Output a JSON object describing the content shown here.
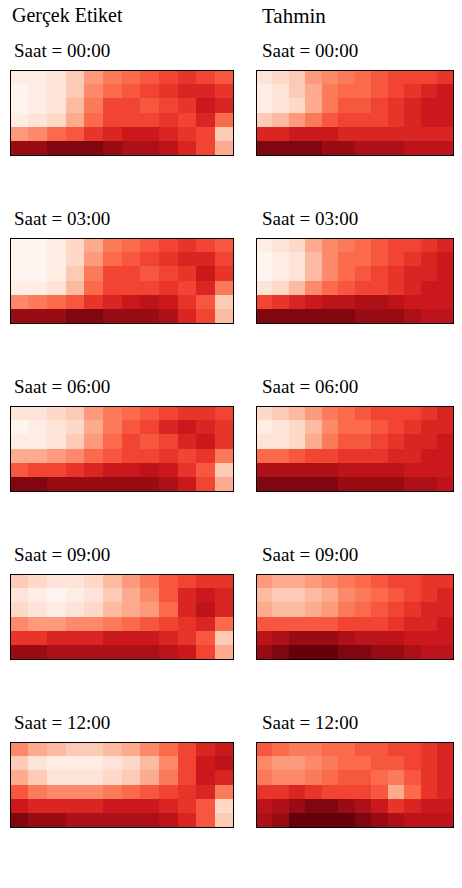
{
  "column_titles": [
    "Gerçek Etiket",
    "Tahmin"
  ],
  "chart_data": [
    {
      "type": "heatmap",
      "title": "Saat = 00:00",
      "tick_labels": false,
      "grid": false,
      "zlim": [
        0,
        1
      ],
      "cells": [
        [
          0.05,
          0.05,
          0.1,
          0.2,
          0.35,
          0.45,
          0.5,
          0.55,
          0.6,
          0.65,
          0.6,
          0.55
        ],
        [
          0.0,
          0.05,
          0.1,
          0.2,
          0.4,
          0.5,
          0.55,
          0.6,
          0.65,
          0.7,
          0.7,
          0.65
        ],
        [
          0.0,
          0.05,
          0.1,
          0.25,
          0.45,
          0.6,
          0.6,
          0.55,
          0.6,
          0.65,
          0.75,
          0.7
        ],
        [
          0.05,
          0.1,
          0.15,
          0.3,
          0.5,
          0.6,
          0.6,
          0.6,
          0.65,
          0.6,
          0.7,
          0.5
        ],
        [
          0.35,
          0.4,
          0.5,
          0.55,
          0.65,
          0.7,
          0.75,
          0.75,
          0.7,
          0.65,
          0.6,
          0.2
        ],
        [
          0.9,
          0.9,
          0.95,
          0.95,
          0.95,
          0.9,
          0.85,
          0.85,
          0.8,
          0.7,
          0.6,
          0.3
        ]
      ]
    },
    {
      "type": "heatmap",
      "title": "Saat = 00:00",
      "tick_labels": false,
      "grid": false,
      "zlim": [
        0,
        1
      ],
      "cells": [
        [
          0.1,
          0.15,
          0.2,
          0.35,
          0.4,
          0.45,
          0.5,
          0.55,
          0.6,
          0.6,
          0.6,
          0.65
        ],
        [
          0.05,
          0.1,
          0.2,
          0.3,
          0.45,
          0.5,
          0.5,
          0.55,
          0.6,
          0.65,
          0.7,
          0.75
        ],
        [
          0.05,
          0.1,
          0.15,
          0.3,
          0.45,
          0.55,
          0.55,
          0.6,
          0.65,
          0.7,
          0.75,
          0.75
        ],
        [
          0.2,
          0.25,
          0.35,
          0.45,
          0.55,
          0.6,
          0.6,
          0.6,
          0.65,
          0.7,
          0.75,
          0.75
        ],
        [
          0.7,
          0.7,
          0.75,
          0.75,
          0.75,
          0.7,
          0.7,
          0.7,
          0.7,
          0.7,
          0.7,
          0.7
        ],
        [
          0.95,
          0.95,
          0.95,
          0.95,
          0.9,
          0.9,
          0.85,
          0.85,
          0.85,
          0.8,
          0.8,
          0.8
        ]
      ]
    },
    {
      "type": "heatmap",
      "title": "Saat = 03:00",
      "tick_labels": false,
      "grid": false,
      "zlim": [
        0,
        1
      ],
      "cells": [
        [
          0.0,
          0.0,
          0.05,
          0.15,
          0.3,
          0.45,
          0.5,
          0.55,
          0.6,
          0.65,
          0.6,
          0.55
        ],
        [
          0.0,
          0.0,
          0.05,
          0.15,
          0.35,
          0.5,
          0.55,
          0.6,
          0.65,
          0.7,
          0.7,
          0.6
        ],
        [
          0.0,
          0.0,
          0.05,
          0.2,
          0.45,
          0.6,
          0.6,
          0.55,
          0.6,
          0.65,
          0.75,
          0.65
        ],
        [
          0.05,
          0.05,
          0.1,
          0.25,
          0.5,
          0.6,
          0.6,
          0.6,
          0.65,
          0.6,
          0.7,
          0.45
        ],
        [
          0.4,
          0.45,
          0.5,
          0.55,
          0.65,
          0.7,
          0.75,
          0.8,
          0.75,
          0.65,
          0.55,
          0.2
        ],
        [
          0.9,
          0.9,
          0.9,
          0.95,
          0.95,
          0.9,
          0.9,
          0.9,
          0.85,
          0.7,
          0.6,
          0.25
        ]
      ]
    },
    {
      "type": "heatmap",
      "title": "Saat = 03:00",
      "tick_labels": false,
      "grid": false,
      "zlim": [
        0,
        1
      ],
      "cells": [
        [
          0.05,
          0.1,
          0.15,
          0.3,
          0.4,
          0.45,
          0.5,
          0.55,
          0.6,
          0.6,
          0.65,
          0.7
        ],
        [
          0.0,
          0.05,
          0.1,
          0.25,
          0.4,
          0.5,
          0.5,
          0.55,
          0.6,
          0.65,
          0.7,
          0.75
        ],
        [
          0.0,
          0.05,
          0.1,
          0.25,
          0.4,
          0.5,
          0.55,
          0.6,
          0.65,
          0.7,
          0.7,
          0.75
        ],
        [
          0.1,
          0.15,
          0.25,
          0.4,
          0.5,
          0.55,
          0.6,
          0.6,
          0.65,
          0.7,
          0.75,
          0.75
        ],
        [
          0.6,
          0.65,
          0.7,
          0.75,
          0.8,
          0.8,
          0.85,
          0.85,
          0.8,
          0.75,
          0.75,
          0.75
        ],
        [
          0.95,
          0.95,
          0.95,
          0.95,
          0.95,
          0.95,
          0.9,
          0.9,
          0.9,
          0.85,
          0.8,
          0.8
        ]
      ]
    },
    {
      "type": "heatmap",
      "title": "Saat = 06:00",
      "tick_labels": false,
      "grid": false,
      "zlim": [
        0,
        1
      ],
      "cells": [
        [
          0.1,
          0.1,
          0.15,
          0.2,
          0.35,
          0.45,
          0.5,
          0.55,
          0.6,
          0.65,
          0.65,
          0.6
        ],
        [
          0.0,
          0.05,
          0.1,
          0.15,
          0.3,
          0.45,
          0.55,
          0.6,
          0.7,
          0.75,
          0.7,
          0.65
        ],
        [
          0.05,
          0.05,
          0.1,
          0.2,
          0.35,
          0.5,
          0.6,
          0.55,
          0.6,
          0.7,
          0.75,
          0.65
        ],
        [
          0.3,
          0.3,
          0.35,
          0.4,
          0.5,
          0.55,
          0.6,
          0.6,
          0.65,
          0.6,
          0.65,
          0.45
        ],
        [
          0.55,
          0.6,
          0.6,
          0.65,
          0.7,
          0.75,
          0.75,
          0.8,
          0.75,
          0.65,
          0.55,
          0.2
        ],
        [
          0.95,
          0.95,
          0.9,
          0.9,
          0.9,
          0.9,
          0.9,
          0.9,
          0.85,
          0.75,
          0.6,
          0.3
        ]
      ]
    },
    {
      "type": "heatmap",
      "title": "Saat = 06:00",
      "tick_labels": false,
      "grid": false,
      "zlim": [
        0,
        1
      ],
      "cells": [
        [
          0.15,
          0.2,
          0.25,
          0.35,
          0.45,
          0.5,
          0.55,
          0.6,
          0.6,
          0.6,
          0.65,
          0.7
        ],
        [
          0.05,
          0.1,
          0.15,
          0.25,
          0.4,
          0.5,
          0.5,
          0.55,
          0.6,
          0.65,
          0.7,
          0.7
        ],
        [
          0.1,
          0.1,
          0.15,
          0.3,
          0.45,
          0.55,
          0.55,
          0.6,
          0.65,
          0.7,
          0.7,
          0.75
        ],
        [
          0.5,
          0.5,
          0.55,
          0.6,
          0.6,
          0.65,
          0.65,
          0.65,
          0.7,
          0.7,
          0.75,
          0.75
        ],
        [
          0.85,
          0.85,
          0.85,
          0.85,
          0.85,
          0.8,
          0.8,
          0.8,
          0.8,
          0.75,
          0.75,
          0.75
        ],
        [
          0.95,
          0.95,
          0.95,
          0.95,
          0.95,
          0.9,
          0.9,
          0.9,
          0.9,
          0.85,
          0.85,
          0.8
        ]
      ]
    },
    {
      "type": "heatmap",
      "title": "Saat = 09:00",
      "tick_labels": false,
      "grid": false,
      "zlim": [
        0,
        1
      ],
      "cells": [
        [
          0.2,
          0.15,
          0.1,
          0.1,
          0.15,
          0.25,
          0.35,
          0.45,
          0.55,
          0.6,
          0.65,
          0.65
        ],
        [
          0.1,
          0.05,
          0.0,
          0.05,
          0.1,
          0.2,
          0.3,
          0.4,
          0.55,
          0.7,
          0.75,
          0.7
        ],
        [
          0.15,
          0.1,
          0.05,
          0.1,
          0.15,
          0.25,
          0.3,
          0.35,
          0.5,
          0.7,
          0.8,
          0.7
        ],
        [
          0.4,
          0.35,
          0.35,
          0.4,
          0.4,
          0.45,
          0.5,
          0.55,
          0.6,
          0.65,
          0.7,
          0.5
        ],
        [
          0.65,
          0.65,
          0.7,
          0.7,
          0.7,
          0.75,
          0.75,
          0.75,
          0.7,
          0.65,
          0.55,
          0.2
        ],
        [
          0.9,
          0.9,
          0.85,
          0.85,
          0.85,
          0.85,
          0.85,
          0.85,
          0.8,
          0.75,
          0.6,
          0.3
        ]
      ]
    },
    {
      "type": "heatmap",
      "title": "Saat = 09:00",
      "tick_labels": false,
      "grid": false,
      "zlim": [
        0,
        1
      ],
      "cells": [
        [
          0.35,
          0.3,
          0.3,
          0.35,
          0.4,
          0.45,
          0.5,
          0.55,
          0.6,
          0.6,
          0.65,
          0.65
        ],
        [
          0.25,
          0.2,
          0.2,
          0.25,
          0.3,
          0.4,
          0.45,
          0.5,
          0.55,
          0.6,
          0.65,
          0.7
        ],
        [
          0.3,
          0.25,
          0.25,
          0.3,
          0.35,
          0.45,
          0.5,
          0.55,
          0.6,
          0.65,
          0.7,
          0.7
        ],
        [
          0.55,
          0.55,
          0.55,
          0.55,
          0.55,
          0.6,
          0.6,
          0.6,
          0.65,
          0.7,
          0.7,
          0.75
        ],
        [
          0.8,
          0.85,
          0.9,
          0.9,
          0.9,
          0.85,
          0.8,
          0.8,
          0.8,
          0.75,
          0.75,
          0.75
        ],
        [
          0.9,
          0.95,
          1.0,
          1.0,
          1.0,
          0.95,
          0.95,
          0.9,
          0.9,
          0.85,
          0.8,
          0.8
        ]
      ]
    },
    {
      "type": "heatmap",
      "title": "Saat = 12:00",
      "tick_labels": false,
      "grid": false,
      "zlim": [
        0,
        1
      ],
      "cells": [
        [
          0.4,
          0.3,
          0.25,
          0.2,
          0.2,
          0.25,
          0.3,
          0.4,
          0.5,
          0.6,
          0.7,
          0.75
        ],
        [
          0.2,
          0.1,
          0.05,
          0.05,
          0.05,
          0.1,
          0.15,
          0.25,
          0.4,
          0.6,
          0.75,
          0.8
        ],
        [
          0.3,
          0.2,
          0.1,
          0.1,
          0.1,
          0.15,
          0.2,
          0.3,
          0.45,
          0.6,
          0.75,
          0.7
        ],
        [
          0.55,
          0.45,
          0.4,
          0.4,
          0.4,
          0.45,
          0.5,
          0.55,
          0.6,
          0.65,
          0.7,
          0.45
        ],
        [
          0.75,
          0.7,
          0.7,
          0.7,
          0.7,
          0.75,
          0.75,
          0.75,
          0.7,
          0.65,
          0.55,
          0.15
        ],
        [
          0.95,
          0.9,
          0.9,
          0.85,
          0.85,
          0.85,
          0.85,
          0.85,
          0.8,
          0.7,
          0.55,
          0.2
        ]
      ]
    },
    {
      "type": "heatmap",
      "title": "Saat = 12:00",
      "tick_labels": false,
      "grid": false,
      "zlim": [
        0,
        1
      ],
      "cells": [
        [
          0.55,
          0.5,
          0.45,
          0.45,
          0.5,
          0.5,
          0.55,
          0.55,
          0.6,
          0.6,
          0.65,
          0.7
        ],
        [
          0.4,
          0.35,
          0.35,
          0.4,
          0.45,
          0.5,
          0.5,
          0.55,
          0.55,
          0.6,
          0.65,
          0.7
        ],
        [
          0.45,
          0.4,
          0.4,
          0.45,
          0.5,
          0.55,
          0.55,
          0.5,
          0.45,
          0.55,
          0.65,
          0.7
        ],
        [
          0.65,
          0.65,
          0.7,
          0.65,
          0.6,
          0.6,
          0.6,
          0.55,
          0.3,
          0.5,
          0.65,
          0.7
        ],
        [
          0.8,
          0.85,
          0.9,
          0.95,
          0.95,
          0.9,
          0.85,
          0.75,
          0.65,
          0.7,
          0.75,
          0.75
        ],
        [
          0.85,
          0.9,
          1.0,
          1.0,
          1.0,
          1.0,
          0.95,
          0.9,
          0.85,
          0.8,
          0.8,
          0.8
        ]
      ]
    }
  ]
}
